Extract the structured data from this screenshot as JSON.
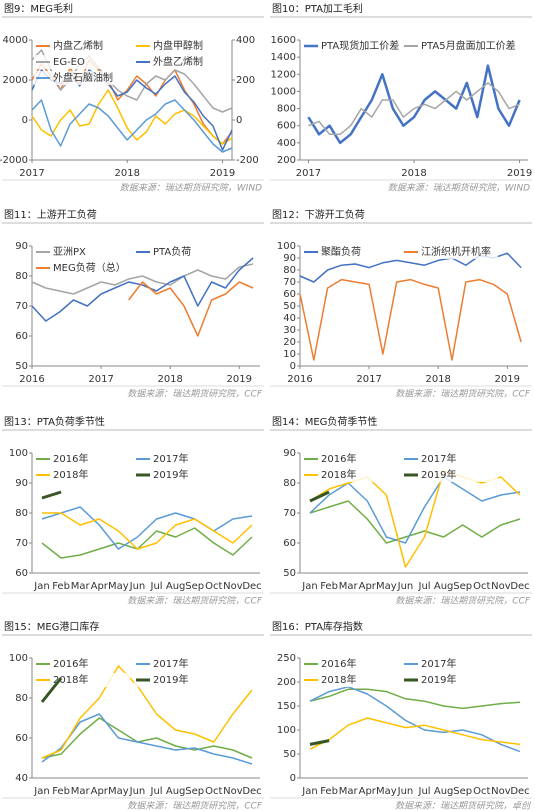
{
  "chart_data": [
    {
      "type": "line",
      "title": "图9：MEG毛利",
      "source": "数据来源：瑞达期货研究院，WIND",
      "x": [
        2017.0,
        2017.1,
        2017.2,
        2017.3,
        2017.4,
        2017.5,
        2017.6,
        2017.7,
        2017.8,
        2017.9,
        2018.0,
        2018.1,
        2018.2,
        2018.3,
        2018.4,
        2018.5,
        2018.6,
        2018.7,
        2018.8,
        2018.9,
        2019.0,
        2019.1
      ],
      "xlim": [
        2017,
        2019.1
      ],
      "xticks": [
        2017,
        2018,
        2019
      ],
      "ylim": [
        -2000,
        4000
      ],
      "yticks": [
        -2000,
        0,
        2000,
        4000
      ],
      "y2lim": [
        -200,
        400
      ],
      "y2ticks": [
        -200,
        0,
        200,
        400
      ],
      "series": [
        {
          "name": "内盘乙烯制",
          "color": "#ed7d31",
          "values": [
            2000,
            2800,
            2200,
            1500,
            2600,
            1800,
            3000,
            2500,
            2000,
            1000,
            1500,
            2200,
            1800,
            1200,
            2000,
            2500,
            1500,
            800,
            -200,
            -800,
            -1200,
            -600
          ]
        },
        {
          "name": "内盘甲醇制",
          "color": "#ffc000",
          "values": [
            200,
            -500,
            -800,
            0,
            500,
            -300,
            -200,
            800,
            1500,
            600,
            -400,
            -1000,
            -600,
            200,
            -200,
            300,
            500,
            200,
            -300,
            -800,
            -1200,
            -900
          ]
        },
        {
          "name": "EG-EO",
          "color": "#a5a5a5",
          "axis": "y2",
          "values": [
            300,
            350,
            250,
            150,
            200,
            280,
            320,
            260,
            200,
            150,
            120,
            100,
            180,
            220,
            200,
            250,
            230,
            180,
            120,
            60,
            40,
            60
          ]
        },
        {
          "name": "外盘乙烯制",
          "color": "#4472c4",
          "values": [
            1500,
            2500,
            2000,
            1800,
            2400,
            1700,
            2500,
            2200,
            1800,
            1200,
            1400,
            2000,
            1600,
            1300,
            1800,
            2200,
            1400,
            900,
            200,
            -300,
            -1500,
            -500
          ]
        },
        {
          "name": "外盘石脑油制",
          "color": "#5b9bd5",
          "values": [
            500,
            1000,
            -500,
            -1300,
            -200,
            300,
            800,
            600,
            200,
            -400,
            -1000,
            -500,
            0,
            300,
            800,
            1000,
            500,
            0,
            -600,
            -1200,
            -1600,
            -1400
          ]
        }
      ]
    },
    {
      "type": "line",
      "title": "图10：PTA加工毛利",
      "source": "数据来源：瑞达期货研究院，WIND",
      "x": [
        2017.0,
        2017.1,
        2017.2,
        2017.3,
        2017.4,
        2017.5,
        2017.6,
        2017.7,
        2017.8,
        2017.9,
        2018.0,
        2018.1,
        2018.2,
        2018.3,
        2018.4,
        2018.5,
        2018.6,
        2018.7,
        2018.8,
        2018.9,
        2019.0
      ],
      "xlim": [
        2016.92,
        2019.08
      ],
      "xticks": [
        2017,
        2018,
        2019
      ],
      "ylim": [
        200,
        1600
      ],
      "yticks": [
        200,
        400,
        600,
        800,
        1000,
        1200,
        1400,
        1600
      ],
      "series": [
        {
          "name": "PTA现货加工价差",
          "color": "#4472c4",
          "width": 2.5,
          "values": [
            700,
            500,
            600,
            400,
            500,
            700,
            900,
            1200,
            800,
            600,
            700,
            900,
            1000,
            900,
            800,
            1100,
            700,
            1300,
            800,
            600,
            900
          ]
        },
        {
          "name": "PTA5月盘面加工价差",
          "color": "#a5a5a5",
          "width": 1.5,
          "values": [
            600,
            650,
            500,
            500,
            600,
            800,
            700,
            900,
            900,
            700,
            800,
            850,
            800,
            900,
            1000,
            900,
            1000,
            1100,
            1000,
            800,
            850
          ]
        }
      ]
    },
    {
      "type": "line",
      "title": "图11：上游开工负荷",
      "source": "数据来源：瑞达期货研究院，CCF",
      "x": [
        2016.0,
        2016.2,
        2016.4,
        2016.6,
        2016.8,
        2017.0,
        2017.2,
        2017.4,
        2017.6,
        2017.8,
        2018.0,
        2018.2,
        2018.4,
        2018.6,
        2018.8,
        2019.0,
        2019.2
      ],
      "xlim": [
        2016,
        2019.3
      ],
      "xticks": [
        2016,
        2017,
        2018,
        2019
      ],
      "ylim": [
        50,
        90
      ],
      "yticks": [
        50,
        60,
        70,
        80,
        90
      ],
      "series": [
        {
          "name": "亚洲PX",
          "color": "#a5a5a5",
          "values": [
            78,
            76,
            75,
            74,
            76,
            78,
            77,
            79,
            80,
            78,
            77,
            80,
            82,
            80,
            79,
            83,
            84
          ]
        },
        {
          "name": "PTA负荷",
          "color": "#4472c4",
          "values": [
            70,
            65,
            68,
            72,
            70,
            74,
            76,
            78,
            77,
            75,
            78,
            80,
            70,
            78,
            76,
            82,
            86
          ]
        },
        {
          "name": "MEG负荷（总）",
          "color": "#ed7d31",
          "values": [
            null,
            null,
            null,
            null,
            null,
            null,
            null,
            72,
            78,
            74,
            76,
            70,
            60,
            72,
            74,
            78,
            76
          ]
        }
      ]
    },
    {
      "type": "line",
      "title": "图12：下游开工负荷",
      "source": "数据来源：瑞达期货研究院，CCF",
      "x": [
        2016.0,
        2016.2,
        2016.4,
        2016.6,
        2016.8,
        2017.0,
        2017.2,
        2017.4,
        2017.6,
        2017.8,
        2018.0,
        2018.2,
        2018.4,
        2018.6,
        2018.8,
        2019.0,
        2019.2
      ],
      "xlim": [
        2016,
        2019.3
      ],
      "xticks": [
        2016,
        2017,
        2018,
        2019
      ],
      "ylim": [
        0,
        100
      ],
      "yticks": [
        0,
        10,
        20,
        30,
        40,
        50,
        60,
        70,
        80,
        90,
        100
      ],
      "series": [
        {
          "name": "聚酯负荷",
          "color": "#4472c4",
          "values": [
            75,
            70,
            80,
            84,
            85,
            82,
            86,
            88,
            86,
            84,
            88,
            90,
            84,
            92,
            90,
            94,
            82
          ]
        },
        {
          "name": "江浙织机开机率",
          "color": "#ed7d31",
          "values": [
            60,
            5,
            65,
            72,
            70,
            68,
            10,
            70,
            72,
            68,
            65,
            5,
            70,
            72,
            68,
            60,
            20
          ]
        }
      ]
    },
    {
      "type": "line",
      "title": "图13：PTA负荷季节性",
      "source": "数据来源：瑞达期货研究院，CCF",
      "categories": [
        "Jan",
        "Feb",
        "Mar",
        "Apr",
        "May",
        "Jun",
        "Jul",
        "Aug",
        "Sep",
        "Oct",
        "Nov",
        "Dec"
      ],
      "ylim": [
        60,
        100
      ],
      "yticks": [
        60,
        70,
        80,
        90,
        100
      ],
      "series": [
        {
          "name": "2016年",
          "color": "#70ad47",
          "values": [
            70,
            65,
            66,
            68,
            70,
            68,
            74,
            72,
            75,
            70,
            66,
            72
          ]
        },
        {
          "name": "2017年",
          "color": "#5b9bd5",
          "values": [
            78,
            80,
            82,
            76,
            68,
            72,
            78,
            80,
            78,
            74,
            78,
            79
          ]
        },
        {
          "name": "2018年",
          "color": "#ffc000",
          "values": [
            80,
            80,
            76,
            78,
            74,
            68,
            70,
            76,
            78,
            74,
            70,
            76
          ]
        },
        {
          "name": "2019年",
          "color": "#375623",
          "width": 3,
          "values": [
            85,
            87,
            null,
            null,
            null,
            null,
            null,
            null,
            null,
            null,
            null,
            null
          ]
        }
      ]
    },
    {
      "type": "line",
      "title": "图14：MEG负荷季节性",
      "source": "数据来源：瑞达期货研究院，CCF",
      "categories": [
        "Jan",
        "Feb",
        "Mar",
        "Apr",
        "May",
        "Jun",
        "Jul",
        "Aug",
        "Sep",
        "Oct",
        "Nov",
        "Dec"
      ],
      "ylim": [
        50,
        90
      ],
      "yticks": [
        50,
        60,
        70,
        80,
        90
      ],
      "series": [
        {
          "name": "2016年",
          "color": "#70ad47",
          "values": [
            70,
            72,
            74,
            68,
            60,
            62,
            64,
            62,
            66,
            62,
            66,
            68
          ]
        },
        {
          "name": "2017年",
          "color": "#5b9bd5",
          "values": [
            70,
            76,
            80,
            74,
            62,
            60,
            72,
            82,
            78,
            74,
            76,
            77
          ]
        },
        {
          "name": "2018年",
          "color": "#ffc000",
          "values": [
            74,
            78,
            80,
            82,
            76,
            52,
            62,
            84,
            82,
            80,
            82,
            76
          ]
        },
        {
          "name": "2019年",
          "color": "#375623",
          "width": 3,
          "values": [
            74,
            77,
            null,
            null,
            null,
            null,
            null,
            null,
            null,
            null,
            null,
            null
          ]
        }
      ]
    },
    {
      "type": "line",
      "title": "图15：MEG港口库存",
      "source": "数据来源：瑞达期货研究院，CCF",
      "categories": [
        "Jan",
        "Feb",
        "Mar",
        "Apr",
        "May",
        "Jun",
        "Jul",
        "Aug",
        "Sep",
        "Oct",
        "Nov",
        "Dec"
      ],
      "ylim": [
        40,
        100
      ],
      "yticks": [
        40,
        60,
        80,
        100
      ],
      "series": [
        {
          "name": "2016年",
          "color": "#70ad47",
          "values": [
            50,
            52,
            62,
            70,
            64,
            58,
            60,
            56,
            54,
            56,
            54,
            50
          ]
        },
        {
          "name": "2017年",
          "color": "#5b9bd5",
          "values": [
            48,
            55,
            68,
            72,
            60,
            58,
            56,
            54,
            55,
            52,
            50,
            47
          ]
        },
        {
          "name": "2018年",
          "color": "#ffc000",
          "values": [
            50,
            54,
            70,
            80,
            96,
            86,
            72,
            64,
            62,
            58,
            72,
            84
          ]
        },
        {
          "name": "2019年",
          "color": "#375623",
          "width": 3,
          "values": [
            78,
            90,
            null,
            null,
            null,
            null,
            null,
            null,
            null,
            null,
            null,
            null
          ]
        }
      ]
    },
    {
      "type": "line",
      "title": "图16：PTA库存指数",
      "source": "数据来源：瑞达期货研究院，卓创",
      "categories": [
        "Jan",
        "Feb",
        "Mar",
        "Apr",
        "May",
        "Jun",
        "Jul",
        "Aug",
        "Sep",
        "Oct",
        "Nov",
        "Dec"
      ],
      "ylim": [
        0,
        250
      ],
      "yticks": [
        0,
        50,
        100,
        150,
        200,
        250
      ],
      "series": [
        {
          "name": "2016年",
          "color": "#70ad47",
          "values": [
            160,
            170,
            185,
            185,
            180,
            165,
            160,
            150,
            145,
            150,
            155,
            158
          ]
        },
        {
          "name": "2017年",
          "color": "#5b9bd5",
          "values": [
            160,
            180,
            190,
            175,
            150,
            120,
            100,
            95,
            100,
            90,
            70,
            55
          ]
        },
        {
          "name": "2018年",
          "color": "#ffc000",
          "values": [
            60,
            80,
            110,
            125,
            115,
            105,
            110,
            100,
            90,
            80,
            75,
            70
          ]
        },
        {
          "name": "2019年",
          "color": "#375623",
          "width": 3,
          "values": [
            70,
            78,
            null,
            null,
            null,
            null,
            null,
            null,
            null,
            null,
            null,
            null
          ]
        }
      ]
    }
  ]
}
